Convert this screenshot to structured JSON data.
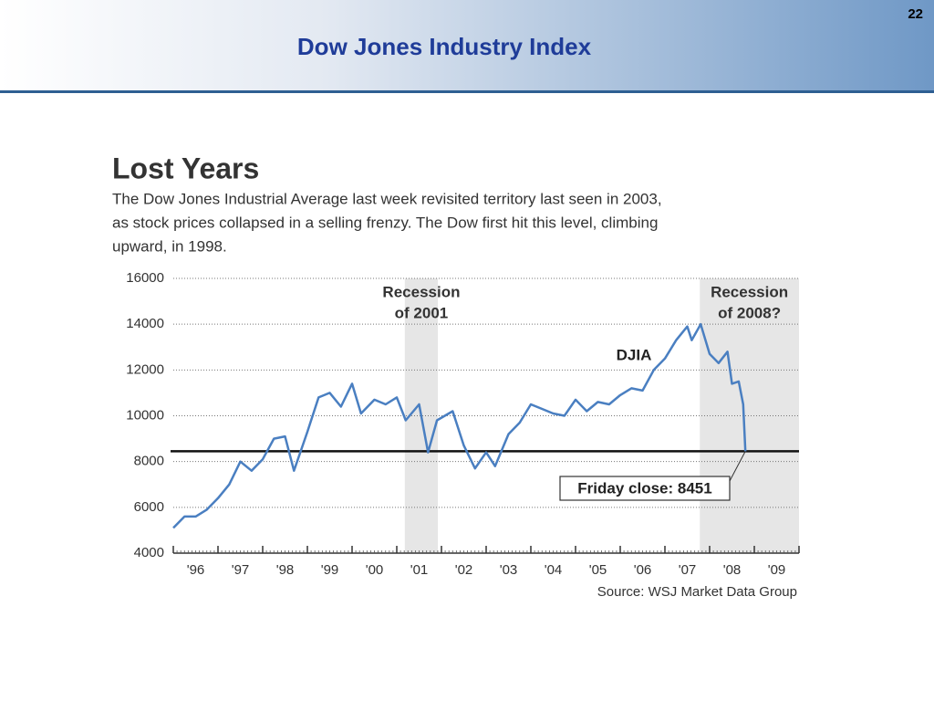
{
  "slide": {
    "title": "Dow Jones Industry Index",
    "page_number": "22"
  },
  "chart_data": {
    "type": "line",
    "title": "Lost Years",
    "subtitle": [
      "The Dow Jones Industrial Average last week revisited territory last seen in 2003,",
      "as stock prices collapsed in a selling frenzy. The Dow first hit this level, climbing",
      "upward, in 1998."
    ],
    "source": "Source: WSJ Market Data Group",
    "x": [
      1996.0,
      1996.25,
      1996.5,
      1996.75,
      1997.0,
      1997.25,
      1997.5,
      1997.75,
      1998.0,
      1998.25,
      1998.5,
      1998.7,
      1999.0,
      1999.25,
      1999.5,
      1999.75,
      2000.0,
      2000.2,
      2000.5,
      2000.75,
      2001.0,
      2001.2,
      2001.5,
      2001.7,
      2001.9,
      2002.25,
      2002.5,
      2002.75,
      2003.0,
      2003.2,
      2003.5,
      2003.75,
      2004.0,
      2004.25,
      2004.5,
      2004.75,
      2005.0,
      2005.25,
      2005.5,
      2005.75,
      2006.0,
      2006.25,
      2006.5,
      2006.75,
      2007.0,
      2007.25,
      2007.5,
      2007.6,
      2007.8,
      2008.0,
      2008.2,
      2008.4,
      2008.5,
      2008.65,
      2008.75,
      2008.8
    ],
    "series": [
      {
        "name": "DJIA",
        "color": "#4a7fc1",
        "values": [
          5100,
          5600,
          5600,
          5900,
          6400,
          7000,
          8000,
          7600,
          8100,
          9000,
          9100,
          7600,
          9300,
          10800,
          11000,
          10400,
          11400,
          10100,
          10700,
          10500,
          10800,
          9800,
          10500,
          8400,
          9800,
          10200,
          8700,
          7700,
          8400,
          7800,
          9200,
          9700,
          10500,
          10300,
          10100,
          10000,
          10700,
          10200,
          10600,
          10500,
          10900,
          11200,
          11100,
          12000,
          12500,
          13300,
          13900,
          13300,
          14000,
          12700,
          12300,
          12800,
          11400,
          11500,
          10500,
          8451
        ]
      }
    ],
    "reference_line": {
      "value": 8451,
      "label": "Friday close: 8451"
    },
    "shaded_regions": [
      {
        "label": [
          "Recession",
          "of 2001"
        ],
        "range": [
          2001.18,
          2001.92
        ]
      },
      {
        "label": [
          "Recession",
          "of 2008?"
        ],
        "range": [
          2007.78,
          2010
        ]
      }
    ],
    "xlim": [
      1996,
      2010
    ],
    "xticks": [
      {
        "value": 1996,
        "label": "'96"
      },
      {
        "value": 1997,
        "label": "'97"
      },
      {
        "value": 1998,
        "label": "'98"
      },
      {
        "value": 1999,
        "label": "'99"
      },
      {
        "value": 2000,
        "label": "'00"
      },
      {
        "value": 2001,
        "label": "'01"
      },
      {
        "value": 2002,
        "label": "'02"
      },
      {
        "value": 2003,
        "label": "'03"
      },
      {
        "value": 2004,
        "label": "'04"
      },
      {
        "value": 2005,
        "label": "'05"
      },
      {
        "value": 2006,
        "label": "'06"
      },
      {
        "value": 2007,
        "label": "'07"
      },
      {
        "value": 2008,
        "label": "'08"
      },
      {
        "value": 2009,
        "label": "'09"
      }
    ],
    "ylim": [
      4000,
      16000
    ],
    "yticks": [
      4000,
      6000,
      8000,
      10000,
      12000,
      14000,
      16000
    ],
    "grid": true
  }
}
